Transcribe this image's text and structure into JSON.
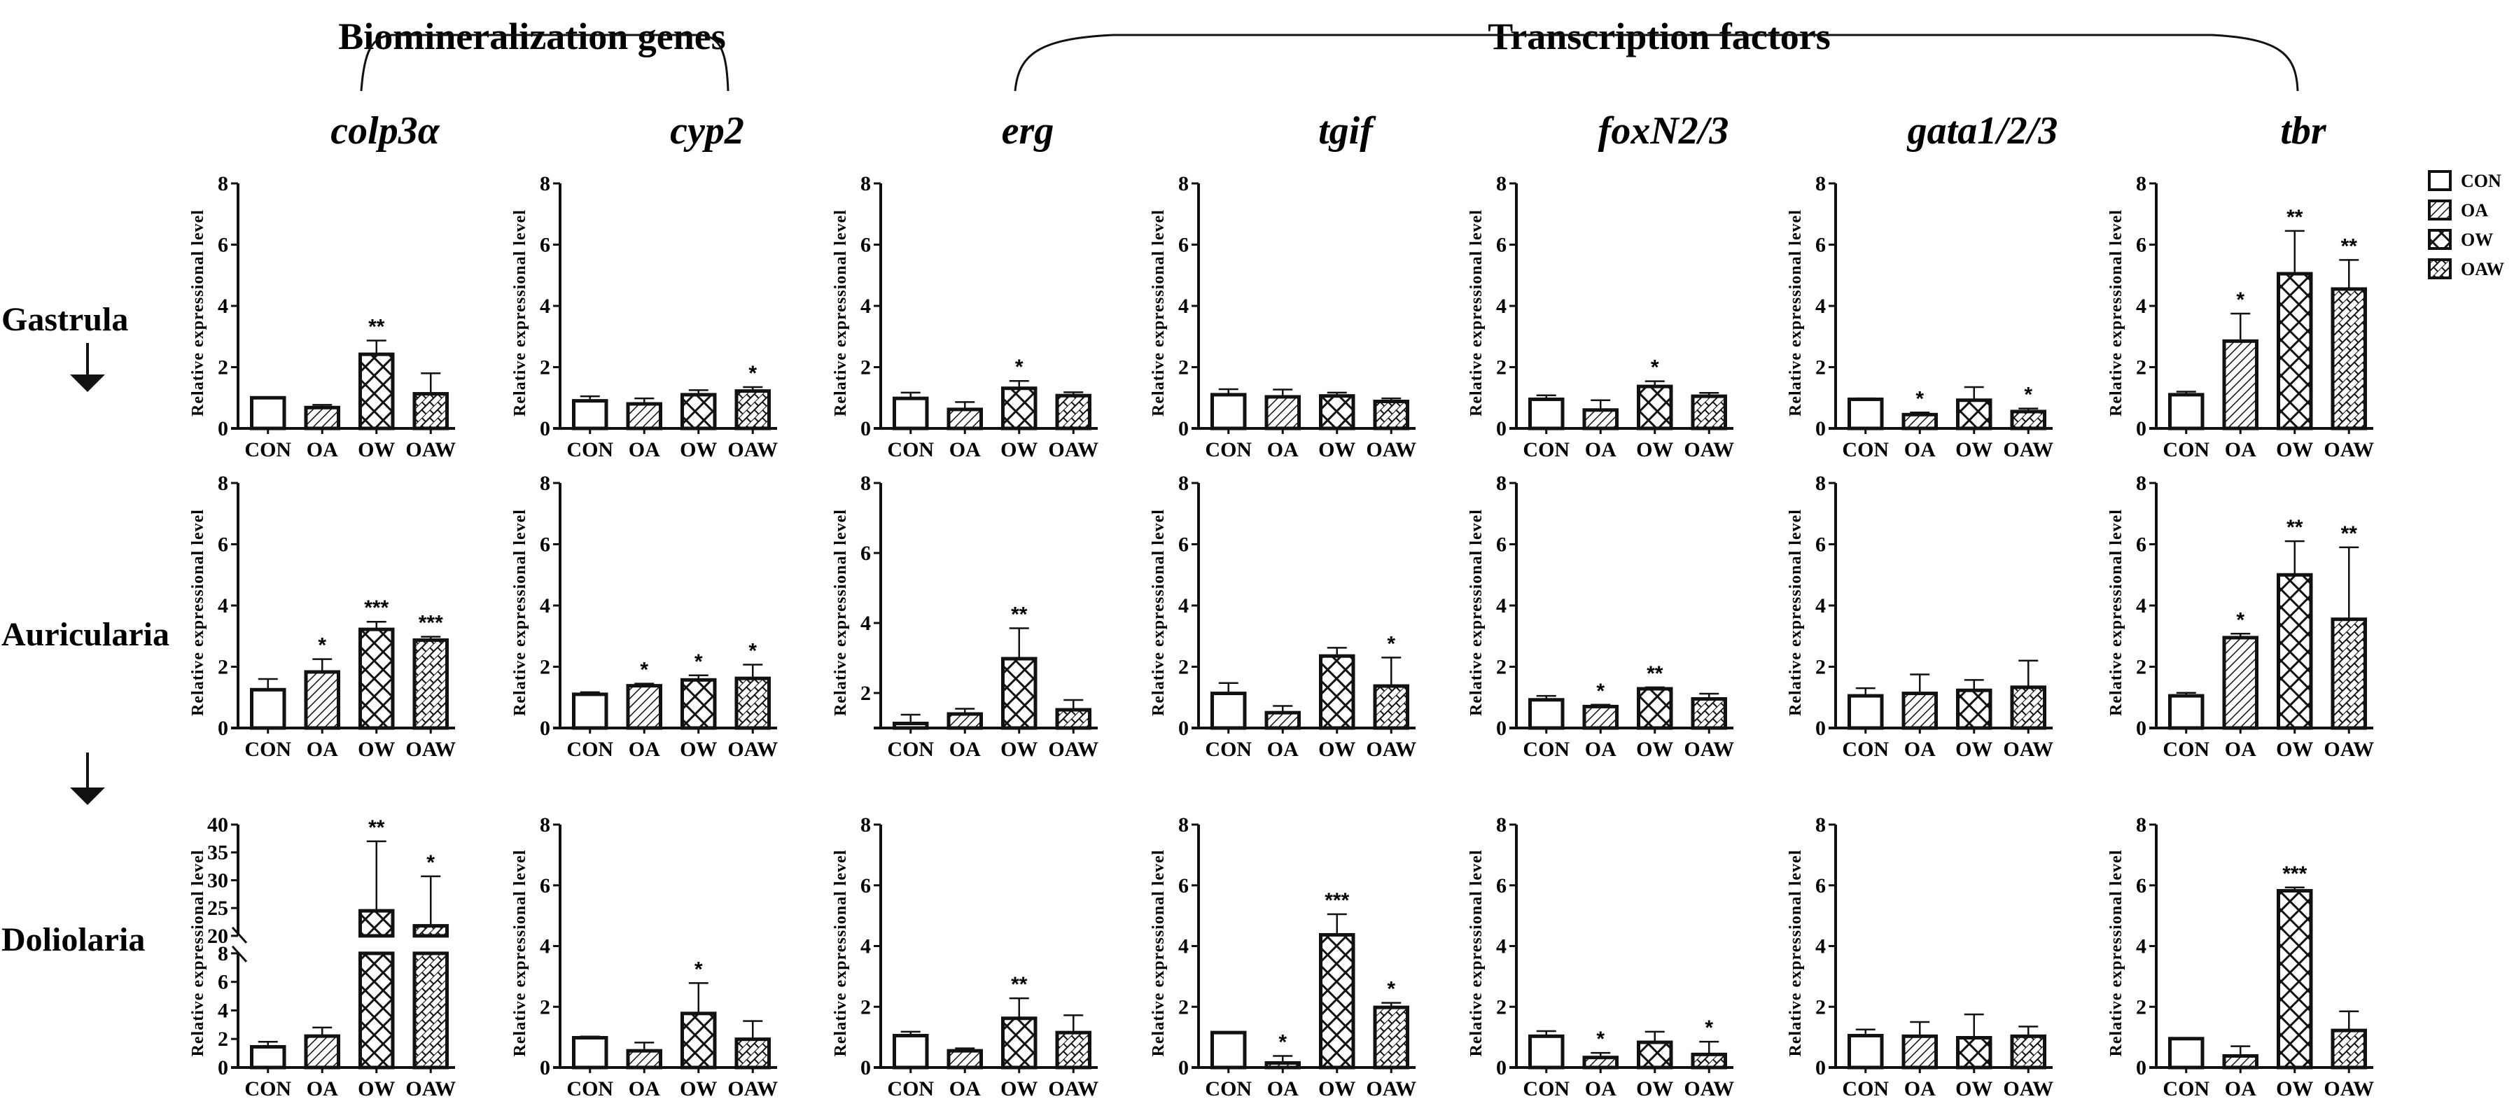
{
  "figure": {
    "group_titles": [
      {
        "label": "Biomineralization genes",
        "genes": [
          "colp3α",
          "cyp2"
        ]
      },
      {
        "label": "Transcription factors",
        "genes": [
          "erg",
          "tgif",
          "foxN2/3",
          "gata1/2/3",
          "tbr"
        ]
      }
    ],
    "stages": [
      "Gastrula",
      "Auricularia",
      "Doliolaria"
    ],
    "legend": {
      "placement": "top-right",
      "entries": [
        {
          "label": "CON",
          "pattern": "open"
        },
        {
          "label": "OA",
          "pattern": "diagonal-hatch"
        },
        {
          "label": "OW",
          "pattern": "crosshatch"
        },
        {
          "label": "OAW",
          "pattern": "brick-hatch"
        }
      ]
    }
  },
  "chart_data": {
    "type": "bar",
    "ylabel": "Relative  expressional level",
    "categories": [
      "CON",
      "OA",
      "OW",
      "OAW"
    ],
    "genes": [
      "colp3α",
      "cyp2",
      "erg",
      "tgif",
      "foxN2/3",
      "gata1/2/3",
      "tbr"
    ],
    "panels": [
      {
        "stage": "Gastrula",
        "gene": "colp3α",
        "ylim": [
          0,
          8
        ],
        "yticks": [
          0,
          2,
          4,
          6,
          8
        ],
        "values": [
          1.0,
          0.68,
          2.42,
          1.13
        ],
        "err_upper": [
          1.0,
          0.77,
          2.87,
          1.8
        ],
        "sig": [
          "",
          "",
          "**",
          ""
        ]
      },
      {
        "stage": "Gastrula",
        "gene": "cyp2",
        "ylim": [
          0,
          8
        ],
        "yticks": [
          0,
          2,
          4,
          6,
          8
        ],
        "values": [
          0.9,
          0.8,
          1.1,
          1.22
        ],
        "err_upper": [
          1.05,
          0.98,
          1.25,
          1.35
        ],
        "sig": [
          "",
          "",
          "",
          "*"
        ]
      },
      {
        "stage": "Gastrula",
        "gene": "erg",
        "ylim": [
          0,
          8
        ],
        "yticks": [
          0,
          2,
          4,
          6,
          8
        ],
        "values": [
          0.98,
          0.62,
          1.31,
          1.07
        ],
        "err_upper": [
          1.17,
          0.86,
          1.55,
          1.18
        ],
        "sig": [
          "",
          "",
          "*",
          ""
        ]
      },
      {
        "stage": "Gastrula",
        "gene": "tgif",
        "ylim": [
          0,
          8
        ],
        "yticks": [
          0,
          2,
          4,
          6,
          8
        ],
        "values": [
          1.1,
          1.03,
          1.06,
          0.88
        ],
        "err_upper": [
          1.28,
          1.27,
          1.17,
          0.98
        ],
        "sig": [
          "",
          "",
          "",
          ""
        ]
      },
      {
        "stage": "Gastrula",
        "gene": "foxN2/3",
        "ylim": [
          0,
          8
        ],
        "yticks": [
          0,
          2,
          4,
          6,
          8
        ],
        "values": [
          0.95,
          0.6,
          1.37,
          1.05
        ],
        "err_upper": [
          1.08,
          0.92,
          1.54,
          1.16
        ],
        "sig": [
          "",
          "",
          "*",
          ""
        ]
      },
      {
        "stage": "Gastrula",
        "gene": "gata1/2/3",
        "ylim": [
          0,
          8
        ],
        "yticks": [
          0,
          2,
          4,
          6,
          8
        ],
        "values": [
          0.95,
          0.45,
          0.92,
          0.55
        ],
        "err_upper": [
          0.98,
          0.52,
          1.35,
          0.65
        ],
        "sig": [
          "",
          "*",
          "",
          "*"
        ]
      },
      {
        "stage": "Gastrula",
        "gene": "tbr",
        "ylim": [
          0,
          8
        ],
        "yticks": [
          0,
          2,
          4,
          6,
          8
        ],
        "values": [
          1.1,
          2.85,
          5.05,
          4.55
        ],
        "err_upper": [
          1.2,
          3.75,
          6.45,
          5.5
        ],
        "sig": [
          "",
          "*",
          "**",
          "**"
        ]
      },
      {
        "stage": "Auricularia",
        "gene": "colp3α",
        "ylim": [
          0,
          8
        ],
        "yticks": [
          0,
          2,
          4,
          6,
          8
        ],
        "values": [
          1.25,
          1.83,
          3.22,
          2.87
        ],
        "err_upper": [
          1.6,
          2.25,
          3.47,
          2.98
        ],
        "sig": [
          "",
          "*",
          "***",
          "***"
        ]
      },
      {
        "stage": "Auricularia",
        "gene": "cyp2",
        "ylim": [
          0,
          8
        ],
        "yticks": [
          0,
          2,
          4,
          6,
          8
        ],
        "values": [
          1.1,
          1.38,
          1.57,
          1.62
        ],
        "err_upper": [
          1.17,
          1.45,
          1.72,
          2.07
        ],
        "sig": [
          "",
          "*",
          "*",
          "*"
        ]
      },
      {
        "stage": "Auricularia",
        "gene": "erg",
        "ylim": [
          1,
          8
        ],
        "yticks": [
          2,
          4,
          6,
          8
        ],
        "values": [
          1.13,
          1.4,
          2.98,
          1.52
        ],
        "err_upper": [
          1.38,
          1.55,
          3.85,
          1.8
        ],
        "sig": [
          "",
          "",
          "**",
          ""
        ]
      },
      {
        "stage": "Auricularia",
        "gene": "tgif",
        "ylim": [
          0,
          8
        ],
        "yticks": [
          0,
          2,
          4,
          6,
          8
        ],
        "values": [
          1.13,
          0.5,
          2.35,
          1.37
        ],
        "err_upper": [
          1.47,
          0.72,
          2.62,
          2.3
        ],
        "sig": [
          "",
          "",
          "",
          "*"
        ]
      },
      {
        "stage": "Auricularia",
        "gene": "foxN2/3",
        "ylim": [
          0,
          8
        ],
        "yticks": [
          0,
          2,
          4,
          6,
          8
        ],
        "values": [
          0.92,
          0.7,
          1.28,
          0.95
        ],
        "err_upper": [
          1.05,
          0.76,
          1.33,
          1.12
        ],
        "sig": [
          "",
          "*",
          "**",
          ""
        ]
      },
      {
        "stage": "Auricularia",
        "gene": "gata1/2/3",
        "ylim": [
          0,
          8
        ],
        "yticks": [
          0,
          2,
          4,
          6,
          8
        ],
        "values": [
          1.05,
          1.13,
          1.23,
          1.33
        ],
        "err_upper": [
          1.3,
          1.75,
          1.57,
          2.2
        ],
        "sig": [
          "",
          "",
          "",
          ""
        ]
      },
      {
        "stage": "Auricularia",
        "gene": "tbr",
        "ylim": [
          0,
          8
        ],
        "yticks": [
          0,
          2,
          4,
          6,
          8
        ],
        "values": [
          1.05,
          2.95,
          5.0,
          3.55
        ],
        "err_upper": [
          1.15,
          3.08,
          6.1,
          5.9
        ],
        "sig": [
          "",
          "*",
          "**",
          "**"
        ]
      },
      {
        "stage": "Doliolaria",
        "gene": "colp3α",
        "ylim": [
          0,
          40
        ],
        "axis_break": [
          8,
          20
        ],
        "yticks": [
          0,
          2,
          4,
          6,
          8,
          20,
          25,
          30,
          35,
          40
        ],
        "values": [
          1.45,
          2.2,
          24.5,
          21.8
        ],
        "err_upper": [
          1.8,
          2.8,
          37.0,
          30.7
        ],
        "sig": [
          "",
          "",
          "**",
          "*"
        ]
      },
      {
        "stage": "Doliolaria",
        "gene": "cyp2",
        "ylim": [
          0,
          8
        ],
        "yticks": [
          0,
          2,
          4,
          6,
          8
        ],
        "values": [
          0.98,
          0.55,
          1.78,
          0.93
        ],
        "err_upper": [
          1.02,
          0.82,
          2.78,
          1.53
        ],
        "sig": [
          "",
          "",
          "*",
          ""
        ]
      },
      {
        "stage": "Doliolaria",
        "gene": "erg",
        "ylim": [
          0,
          8
        ],
        "yticks": [
          0,
          2,
          4,
          6,
          8
        ],
        "values": [
          1.05,
          0.55,
          1.62,
          1.15
        ],
        "err_upper": [
          1.18,
          0.63,
          2.28,
          1.72
        ],
        "sig": [
          "",
          "",
          "**",
          ""
        ]
      },
      {
        "stage": "Doliolaria",
        "gene": "tgif",
        "ylim": [
          0,
          8
        ],
        "yticks": [
          0,
          2,
          4,
          6,
          8
        ],
        "values": [
          1.15,
          0.15,
          4.37,
          1.98
        ],
        "err_upper": [
          1.17,
          0.38,
          5.05,
          2.13
        ],
        "sig": [
          "",
          "*",
          "***",
          "*"
        ]
      },
      {
        "stage": "Doliolaria",
        "gene": "foxN2/3",
        "ylim": [
          0,
          8
        ],
        "yticks": [
          0,
          2,
          4,
          6,
          8
        ],
        "values": [
          1.03,
          0.33,
          0.83,
          0.43
        ],
        "err_upper": [
          1.2,
          0.48,
          1.18,
          0.85
        ],
        "sig": [
          "",
          "*",
          "",
          "*"
        ]
      },
      {
        "stage": "Doliolaria",
        "gene": "gata1/2/3",
        "ylim": [
          0,
          8
        ],
        "yticks": [
          0,
          2,
          4,
          6,
          8
        ],
        "values": [
          1.05,
          1.03,
          0.98,
          1.03
        ],
        "err_upper": [
          1.25,
          1.5,
          1.75,
          1.35
        ],
        "sig": [
          "",
          "",
          "",
          ""
        ]
      },
      {
        "stage": "Doliolaria",
        "gene": "tbr",
        "ylim": [
          0,
          8
        ],
        "yticks": [
          0,
          2,
          4,
          6,
          8
        ],
        "values": [
          0.95,
          0.38,
          5.82,
          1.22
        ],
        "err_upper": [
          0.97,
          0.7,
          5.93,
          1.85
        ],
        "sig": [
          "",
          "",
          "***",
          ""
        ]
      }
    ],
    "grid": false
  }
}
